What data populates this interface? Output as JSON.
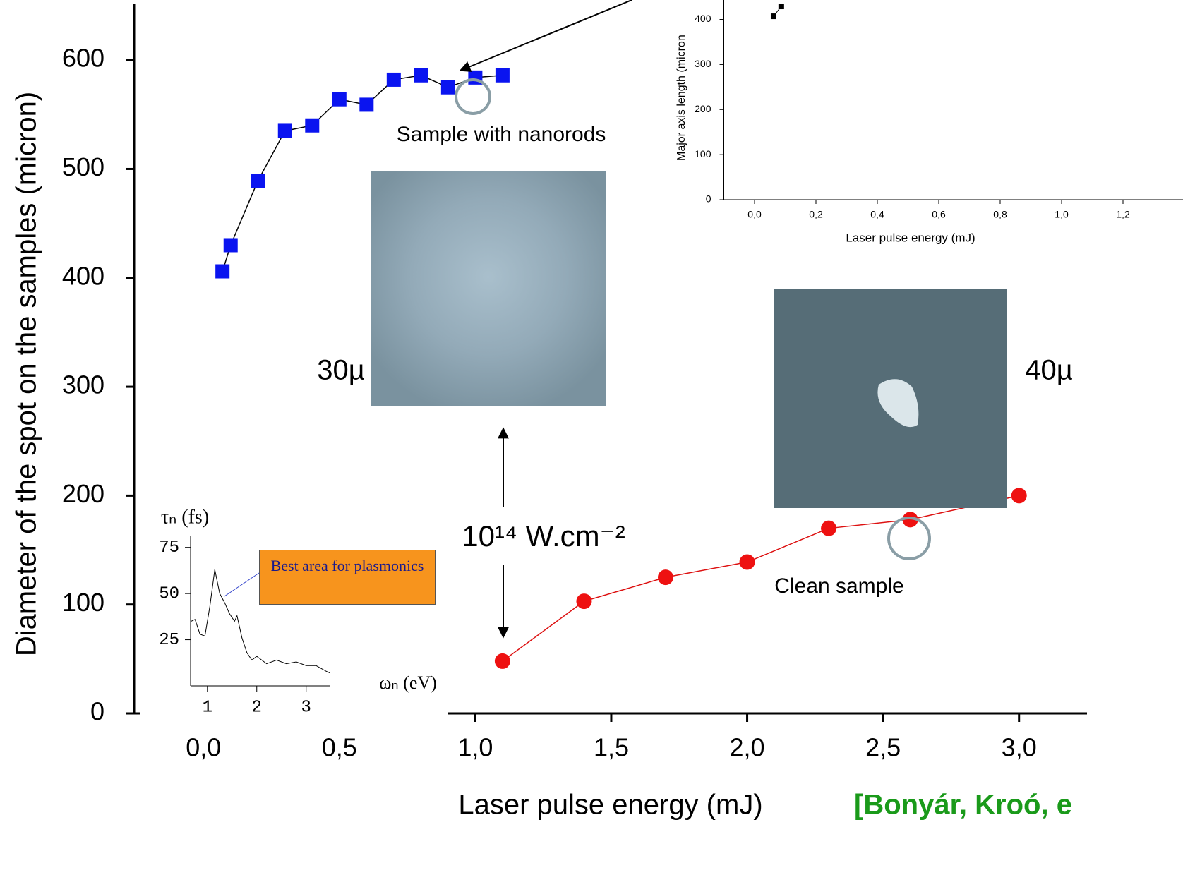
{
  "chart_data": [
    {
      "type": "line",
      "xlabel": "Laser pulse energy (mJ)",
      "ylabel": "Diameter of the spot on the samples (micron)",
      "xlim": [
        -0.255,
        3.25
      ],
      "ylim": [
        0,
        650
      ],
      "xticks": [
        {
          "value": 0,
          "label": "0,0"
        },
        {
          "value": 0.5,
          "label": "0,5"
        },
        {
          "value": 1,
          "label": "1,0"
        },
        {
          "value": 1.5,
          "label": "1,5"
        },
        {
          "value": 2,
          "label": "2,0"
        },
        {
          "value": 2.5,
          "label": "2,5"
        },
        {
          "value": 3,
          "label": "3,0"
        }
      ],
      "yticks": [
        0,
        100,
        200,
        300,
        400,
        500,
        600
      ],
      "series": [
        {
          "color": "#0a14f0",
          "line_color": "#000000",
          "marker": "square",
          "x": [
            0.07,
            0.1,
            0.2,
            0.3,
            0.4,
            0.5,
            0.6,
            0.7,
            0.8,
            0.9,
            1.0,
            1.1
          ],
          "values": [
            406,
            430,
            489,
            535,
            540,
            564,
            559,
            582,
            586,
            575,
            584,
            586
          ]
        },
        {
          "color": "#ee1111",
          "line_color": "#dd1111",
          "marker": "circle",
          "x": [
            1.1,
            1.4,
            1.7,
            2.0,
            2.3,
            2.6,
            3.0
          ],
          "values": [
            48,
            103,
            125,
            139,
            170,
            178,
            200
          ]
        }
      ],
      "annotations": [
        "Sample with nanorods",
        "Clean sample",
        "30µ",
        "40µ",
        "10¹⁴ W.cm⁻²",
        "[Bonyár, Kroó, e"
      ]
    },
    {
      "type": "line",
      "xlabel": "Laser pulse energy (mJ)",
      "ylabel": "Major axis length (micron",
      "xlim": [
        -0.1,
        1.25
      ],
      "ylim": [
        0,
        440
      ],
      "xticks": [
        {
          "value": 0,
          "label": "0,0"
        },
        {
          "value": 0.2,
          "label": "0,2"
        },
        {
          "value": 0.4,
          "label": "0,4"
        },
        {
          "value": 0.6,
          "label": "0,6"
        },
        {
          "value": 0.8,
          "label": "0,8"
        },
        {
          "value": 1,
          "label": "1,0"
        },
        {
          "value": 1.2,
          "label": "1,2"
        }
      ],
      "yticks": [
        0,
        100,
        200,
        300,
        400
      ],
      "series": [
        {
          "color": "#000000",
          "line_color": "#000000",
          "marker": "square",
          "x": [
            0.062,
            0.087
          ],
          "values": [
            407,
            429
          ]
        }
      ]
    },
    {
      "type": "line",
      "xlabel": "ωₙ (eV)",
      "ylabel": "τₙ (fs)",
      "xlim": [
        0.66,
        3.49
      ],
      "ylim": [
        0,
        81
      ],
      "xticks": [
        1,
        2,
        3
      ],
      "yticks": [
        25,
        50,
        75
      ],
      "series": [
        {
          "line_color": "#000000",
          "x": [
            0.67,
            0.75,
            0.85,
            0.95,
            1.05,
            1.15,
            1.25,
            1.35,
            1.45,
            1.55,
            1.6,
            1.7,
            1.8,
            1.9,
            2.0,
            2.2,
            2.4,
            2.6,
            2.8,
            3.0,
            3.2,
            3.4,
            3.48
          ],
          "values": [
            35,
            36,
            28,
            27,
            43,
            63,
            50,
            45,
            39,
            35,
            38,
            26,
            18,
            14,
            16,
            12,
            14,
            12,
            13,
            11,
            11,
            8,
            7
          ]
        }
      ],
      "annotations": [
        "Best area for plasmonics"
      ]
    }
  ]
}
